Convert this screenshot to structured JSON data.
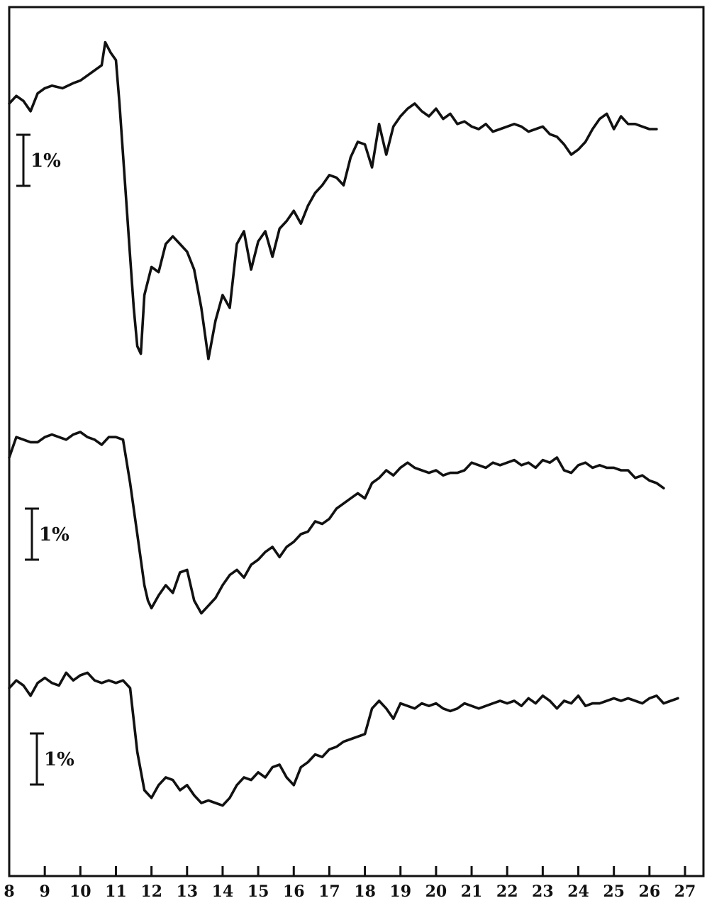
{
  "chart_data": {
    "type": "line",
    "title": "",
    "xlabel": "",
    "ylabel": "",
    "xlim": [
      8,
      27
    ],
    "x_ticks": [
      "8",
      "9",
      "10",
      "11",
      "12",
      "13",
      "14",
      "15",
      "16",
      "17",
      "18",
      "19",
      "20",
      "21",
      "22",
      "23",
      "24",
      "25",
      "26",
      "27"
    ],
    "y_unit": "%",
    "y_note": "Each trace is vertically offset; y is relative change in %, referenced to each trace's starting level. Vertical scale bar per trace = 1%.",
    "grid": false,
    "legend": "none",
    "series": [
      {
        "scale_bar_label": "1%",
        "scale_bar_value": 1,
        "x": [
          8.0,
          8.2,
          8.4,
          8.6,
          8.8,
          9.0,
          9.2,
          9.5,
          9.8,
          10.0,
          10.2,
          10.4,
          10.6,
          10.7,
          10.85,
          11.0,
          11.1,
          11.2,
          11.3,
          11.4,
          11.5,
          11.6,
          11.7,
          11.8,
          12.0,
          12.2,
          12.4,
          12.6,
          12.8,
          13.0,
          13.2,
          13.4,
          13.6,
          13.8,
          14.0,
          14.2,
          14.4,
          14.6,
          14.8,
          15.0,
          15.2,
          15.4,
          15.6,
          15.8,
          16.0,
          16.2,
          16.4,
          16.6,
          16.8,
          17.0,
          17.2,
          17.4,
          17.6,
          17.8,
          18.0,
          18.2,
          18.4,
          18.6,
          18.8,
          19.0,
          19.2,
          19.4,
          19.6,
          19.8,
          20.0,
          20.2,
          20.4,
          20.6,
          20.8,
          21.0,
          21.2,
          21.4,
          21.6,
          21.8,
          22.0,
          22.2,
          22.4,
          22.6,
          22.8,
          23.0,
          23.2,
          23.4,
          23.6,
          23.8,
          24.0,
          24.2,
          24.4,
          24.6,
          24.8,
          25.0,
          25.2,
          25.4,
          25.6,
          25.8,
          26.0,
          26.2
        ],
        "y": [
          0.0,
          0.3,
          0.1,
          -0.3,
          0.4,
          0.6,
          0.7,
          0.6,
          0.8,
          0.9,
          1.1,
          1.3,
          1.5,
          2.4,
          2.0,
          1.7,
          0.0,
          -2.0,
          -4.0,
          -6.0,
          -8.0,
          -9.5,
          -9.8,
          -7.5,
          -6.4,
          -6.6,
          -5.5,
          -5.2,
          -5.5,
          -5.8,
          -6.5,
          -8.0,
          -10.0,
          -8.5,
          -7.5,
          -8.0,
          -5.5,
          -5.0,
          -6.5,
          -5.4,
          -5.0,
          -6.0,
          -4.9,
          -4.6,
          -4.2,
          -4.7,
          -4.0,
          -3.5,
          -3.2,
          -2.8,
          -2.9,
          -3.2,
          -2.1,
          -1.5,
          -1.6,
          -2.5,
          -0.8,
          -2.0,
          -0.9,
          -0.5,
          -0.2,
          0.0,
          -0.3,
          -0.5,
          -0.2,
          -0.6,
          -0.4,
          -0.8,
          -0.7,
          -0.9,
          -1.0,
          -0.8,
          -1.1,
          -1.0,
          -0.9,
          -0.8,
          -0.9,
          -1.1,
          -1.0,
          -0.9,
          -1.2,
          -1.3,
          -1.6,
          -2.0,
          -1.8,
          -1.5,
          -1.0,
          -0.6,
          -0.4,
          -1.0,
          -0.5,
          -0.8,
          -0.8,
          -0.9,
          -1.0,
          -1.0
        ]
      },
      {
        "scale_bar_label": "1%",
        "scale_bar_value": 1,
        "x": [
          8.0,
          8.2,
          8.4,
          8.6,
          8.8,
          9.0,
          9.2,
          9.4,
          9.6,
          9.8,
          10.0,
          10.2,
          10.4,
          10.6,
          10.8,
          11.0,
          11.2,
          11.4,
          11.6,
          11.8,
          11.9,
          12.0,
          12.2,
          12.4,
          12.6,
          12.8,
          13.0,
          13.2,
          13.4,
          13.6,
          13.8,
          14.0,
          14.2,
          14.4,
          14.6,
          14.8,
          15.0,
          15.2,
          15.4,
          15.6,
          15.8,
          16.0,
          16.2,
          16.4,
          16.6,
          16.8,
          17.0,
          17.2,
          17.4,
          17.6,
          17.8,
          18.0,
          18.2,
          18.4,
          18.6,
          18.8,
          19.0,
          19.2,
          19.4,
          19.6,
          19.8,
          20.0,
          20.2,
          20.4,
          20.6,
          20.8,
          21.0,
          21.2,
          21.4,
          21.6,
          21.8,
          22.0,
          22.2,
          22.4,
          22.6,
          22.8,
          23.0,
          23.2,
          23.4,
          23.6,
          23.8,
          24.0,
          24.2,
          24.4,
          24.6,
          24.8,
          25.0,
          25.2,
          25.4,
          25.6,
          25.8,
          26.0,
          26.2,
          26.4
        ],
        "y": [
          0.0,
          0.8,
          0.7,
          0.6,
          0.6,
          0.8,
          0.9,
          0.8,
          0.7,
          0.9,
          1.0,
          0.8,
          0.7,
          0.5,
          0.8,
          0.8,
          0.7,
          -1.0,
          -3.0,
          -5.0,
          -5.6,
          -5.9,
          -5.4,
          -5.0,
          -5.3,
          -4.5,
          -4.4,
          -5.6,
          -6.1,
          -5.8,
          -5.5,
          -5.0,
          -4.6,
          -4.4,
          -4.7,
          -4.2,
          -4.0,
          -3.7,
          -3.5,
          -3.9,
          -3.5,
          -3.3,
          -3.0,
          -2.9,
          -2.5,
          -2.6,
          -2.4,
          -2.0,
          -1.8,
          -1.6,
          -1.4,
          -1.6,
          -1.0,
          -0.8,
          -0.5,
          -0.7,
          -0.4,
          -0.2,
          -0.4,
          -0.5,
          -0.6,
          -0.5,
          -0.7,
          -0.6,
          -0.6,
          -0.5,
          -0.2,
          -0.3,
          -0.4,
          -0.2,
          -0.3,
          -0.2,
          -0.1,
          -0.3,
          -0.2,
          -0.4,
          -0.1,
          -0.2,
          0.0,
          -0.5,
          -0.6,
          -0.3,
          -0.2,
          -0.4,
          -0.3,
          -0.4,
          -0.4,
          -0.5,
          -0.5,
          -0.8,
          -0.7,
          -0.9,
          -1.0,
          -1.2
        ]
      },
      {
        "scale_bar_label": "1%",
        "scale_bar_value": 1,
        "x": [
          8.0,
          8.2,
          8.4,
          8.6,
          8.8,
          9.0,
          9.2,
          9.4,
          9.6,
          9.8,
          10.0,
          10.2,
          10.4,
          10.6,
          10.8,
          11.0,
          11.2,
          11.4,
          11.6,
          11.8,
          12.0,
          12.2,
          12.4,
          12.6,
          12.8,
          13.0,
          13.2,
          13.4,
          13.6,
          13.8,
          14.0,
          14.2,
          14.4,
          14.6,
          14.8,
          15.0,
          15.2,
          15.4,
          15.6,
          15.8,
          16.0,
          16.2,
          16.4,
          16.6,
          16.8,
          17.0,
          17.2,
          17.4,
          17.6,
          17.8,
          18.0,
          18.2,
          18.4,
          18.6,
          18.8,
          19.0,
          19.2,
          19.4,
          19.6,
          19.8,
          20.0,
          20.2,
          20.4,
          20.6,
          20.8,
          21.0,
          21.2,
          21.4,
          21.6,
          21.8,
          22.0,
          22.2,
          22.4,
          22.6,
          22.8,
          23.0,
          23.2,
          23.4,
          23.6,
          23.8,
          24.0,
          24.2,
          24.4,
          24.6,
          24.8,
          25.0,
          25.2,
          25.4,
          25.6,
          25.8,
          26.0,
          26.2,
          26.4,
          26.6,
          26.8
        ],
        "y": [
          0.0,
          0.3,
          0.1,
          -0.3,
          0.2,
          0.4,
          0.2,
          0.1,
          0.6,
          0.3,
          0.5,
          0.6,
          0.3,
          0.2,
          0.3,
          0.2,
          0.3,
          0.0,
          -2.5,
          -4.0,
          -4.3,
          -3.8,
          -3.5,
          -3.6,
          -4.0,
          -3.8,
          -4.2,
          -4.5,
          -4.4,
          -4.5,
          -4.6,
          -4.3,
          -3.8,
          -3.5,
          -3.6,
          -3.3,
          -3.5,
          -3.1,
          -3.0,
          -3.5,
          -3.8,
          -3.1,
          -2.9,
          -2.6,
          -2.7,
          -2.4,
          -2.3,
          -2.1,
          -2.0,
          -1.9,
          -1.8,
          -0.8,
          -0.5,
          -0.8,
          -1.2,
          -0.6,
          -0.7,
          -0.8,
          -0.6,
          -0.7,
          -0.6,
          -0.8,
          -0.9,
          -0.8,
          -0.6,
          -0.7,
          -0.8,
          -0.7,
          -0.6,
          -0.5,
          -0.6,
          -0.5,
          -0.7,
          -0.4,
          -0.6,
          -0.3,
          -0.5,
          -0.8,
          -0.5,
          -0.6,
          -0.3,
          -0.7,
          -0.6,
          -0.6,
          -0.5,
          -0.4,
          -0.5,
          -0.4,
          -0.5,
          -0.6,
          -0.4,
          -0.3,
          -0.6,
          -0.5,
          -0.4
        ]
      }
    ]
  }
}
